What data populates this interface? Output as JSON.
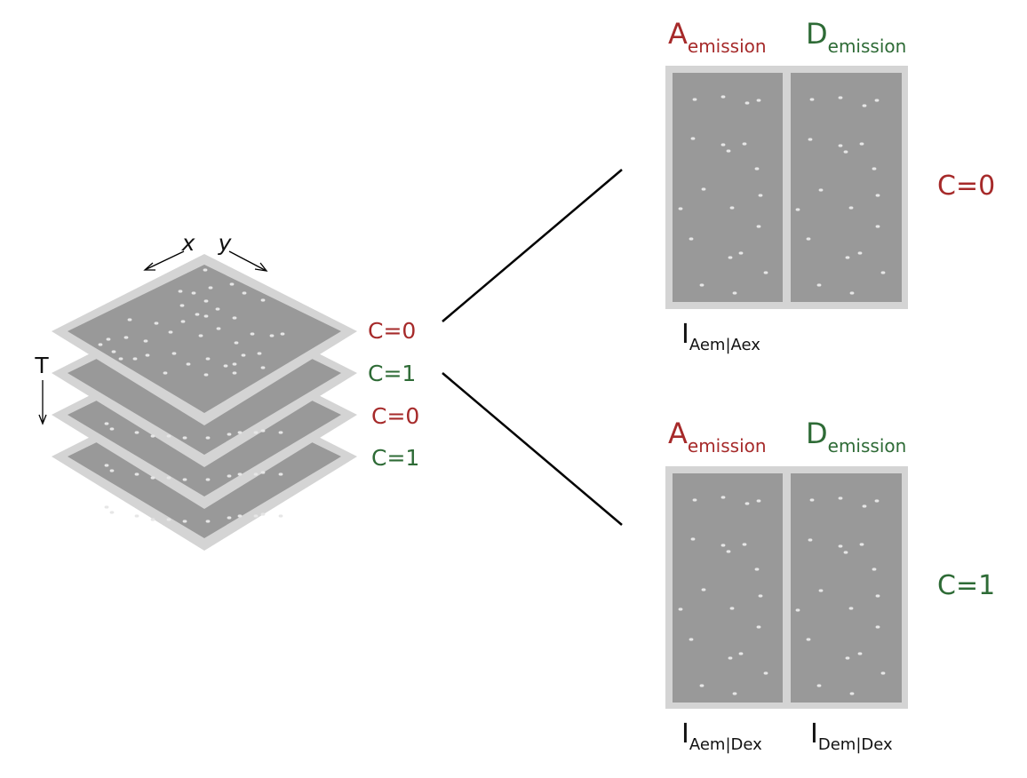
{
  "colors": {
    "red": "#a62a2a",
    "green": "#2e6b36",
    "frame_border": "#d4d4d4",
    "frame_fill": "#999999",
    "spot": "#e6e6e6",
    "line": "#000000"
  },
  "stack": {
    "axis_x": "x",
    "axis_y": "y",
    "axis_t": "T",
    "layers": [
      {
        "label": "C=0",
        "color": "red"
      },
      {
        "label": "C=1",
        "color": "green"
      },
      {
        "label": "C=0",
        "color": "red"
      },
      {
        "label": "C=1",
        "color": "green"
      }
    ]
  },
  "panels": [
    {
      "channel": "C=0",
      "channel_color": "red",
      "acceptor_letter": "A",
      "acceptor_sub": "emission",
      "donor_letter": "D",
      "donor_sub": "emission",
      "left_intensity_letter": "I",
      "left_intensity_sub": "Aem|Aex",
      "right_intensity_letter": "",
      "right_intensity_sub": ""
    },
    {
      "channel": "C=1",
      "channel_color": "green",
      "acceptor_letter": "A",
      "acceptor_sub": "emission",
      "donor_letter": "D",
      "donor_sub": "emission",
      "left_intensity_letter": "I",
      "left_intensity_sub": "Aem|Dex",
      "right_intensity_letter": "I",
      "right_intensity_sub": "Dem|Dex"
    }
  ]
}
